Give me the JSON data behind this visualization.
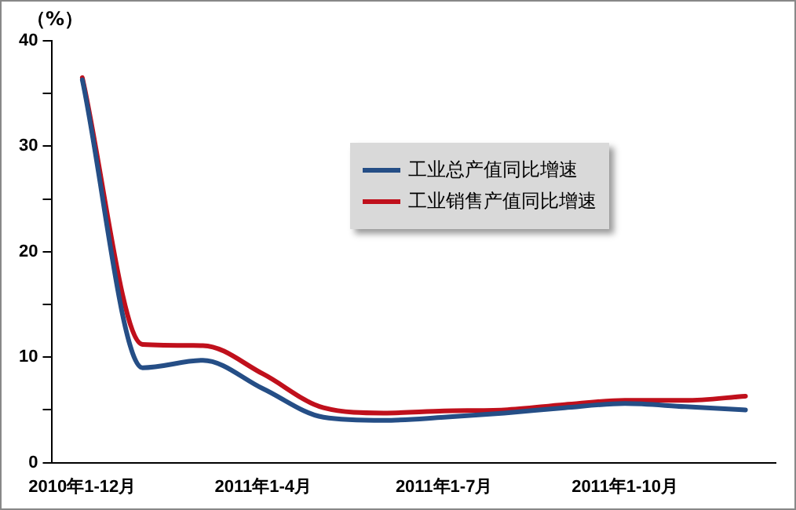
{
  "chart_data": {
    "type": "line",
    "ylabel": "（%）",
    "categories": [
      "2010年1-12月",
      null,
      null,
      "2011年1-4月",
      null,
      null,
      "2011年1-7月",
      null,
      null,
      "2011年1-10月",
      null,
      null
    ],
    "series": [
      {
        "name": "工业总产值同比增速",
        "color": "#254e86",
        "values": [
          36.3,
          9.0,
          9.7,
          7.0,
          4.3,
          4.0,
          4.3,
          4.7,
          5.2,
          5.6,
          5.3,
          5.0
        ]
      },
      {
        "name": "工业销售产值同比增速",
        "color": "#c0101c",
        "values": [
          36.5,
          11.2,
          11.1,
          8.4,
          5.2,
          4.7,
          4.9,
          5.0,
          5.5,
          5.9,
          5.9,
          6.3
        ]
      }
    ],
    "ylim": [
      0,
      40
    ],
    "yticks": [
      0,
      {
        "value": 5,
        "label": null
      },
      10,
      {
        "value": 15,
        "label": null
      },
      20,
      {
        "value": 25,
        "label": null
      },
      30,
      {
        "value": 35,
        "label": null
      },
      40
    ],
    "grid": false,
    "legend": "top right",
    "marker": "none",
    "line_style": "solid"
  }
}
